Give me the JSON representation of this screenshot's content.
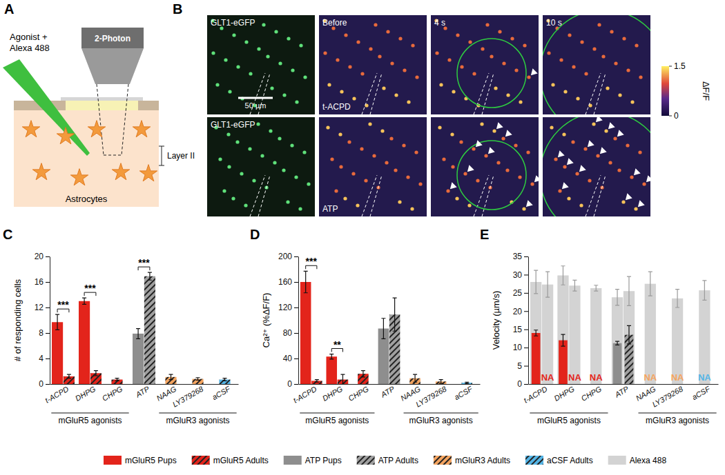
{
  "schematic": {
    "title": "A",
    "pipette_label": [
      "Agonist +",
      "Alexa 488"
    ],
    "objective_label": "2-Photon",
    "layer_label": "Layer II",
    "cell_label": "Astrocytes"
  },
  "images": {
    "title": "B",
    "columns": [
      "GLT1-eGFP",
      "Before",
      "4 s",
      "10 s"
    ],
    "rows": [
      "t-ACPD",
      "ATP"
    ],
    "scale_bar": "50 µm",
    "colorbar": {
      "label": "ΔF/F",
      "range": [
        0,
        1.5
      ],
      "ticks": [
        0,
        1.5
      ]
    }
  },
  "chart_data": [
    {
      "type": "bar",
      "title": "C",
      "y_label": "# of responding cells",
      "categories": [
        "t-ACPD",
        "DHPG",
        "CHPG",
        "ATP",
        "NAAG",
        "LY379268",
        "aCSF"
      ],
      "ylim": [
        0,
        20
      ],
      "yticks": [
        0,
        4,
        8,
        12,
        16,
        20
      ],
      "series": [
        {
          "type": "bar",
          "marker": "solid",
          "colors": [
            "#e3241b",
            "#e3241b",
            null,
            "#8e8e8e",
            null,
            null,
            null
          ],
          "values": [
            9.7,
            13,
            null,
            7.9,
            null,
            null,
            null
          ],
          "errors": [
            1.2,
            0.5,
            null,
            0.8,
            null,
            null,
            null
          ]
        },
        {
          "type": "bar",
          "marker": "hatched",
          "colors": [
            "#e3241b",
            "#e3241b",
            "#e3241b",
            "#a0a0a0",
            "#f4a460",
            "#f4a460",
            "#55b5e6"
          ],
          "values": [
            1.2,
            1.7,
            0.7,
            16.9,
            1.1,
            0.8,
            0.7
          ],
          "errors": [
            0.3,
            0.4,
            0.2,
            0.6,
            0.4,
            0.2,
            0.2
          ]
        }
      ],
      "annotations": [
        {
          "text": "***",
          "category": "t-ACPD"
        },
        {
          "text": "***",
          "category": "DHPG"
        },
        {
          "text": "***",
          "category": "ATP"
        }
      ],
      "category_groups": [
        {
          "label": "mGluR5 agonists",
          "from": "t-ACPD",
          "to": "CHPG"
        },
        {
          "label": "mGluR3 agonists",
          "from": "NAAG",
          "to": "aCSF"
        }
      ]
    },
    {
      "type": "bar",
      "title": "D",
      "y_label": "Ca²⁺ (%ΔF/F)",
      "categories": [
        "t-ACPD",
        "DHPG",
        "CHPG",
        "ATP",
        "NAAG",
        "LY379268",
        "aCSF"
      ],
      "ylim": [
        0,
        200
      ],
      "yticks": [
        0,
        40,
        80,
        120,
        160,
        200
      ],
      "series": [
        {
          "type": "bar",
          "marker": "solid",
          "colors": [
            "#e3241b",
            "#e3241b",
            null,
            "#8e8e8e",
            null,
            null,
            null
          ],
          "values": [
            160,
            43,
            null,
            87,
            null,
            null,
            null
          ],
          "errors": [
            17,
            4,
            null,
            16,
            null,
            null,
            null
          ]
        },
        {
          "type": "bar",
          "marker": "hatched",
          "colors": [
            "#e3241b",
            "#e3241b",
            "#e3241b",
            "#a0a0a0",
            "#f4a460",
            "#f4a460",
            "#55b5e6"
          ],
          "values": [
            5,
            7,
            16,
            109,
            9,
            4,
            2
          ],
          "errors": [
            2,
            8,
            5,
            26,
            6,
            3,
            1
          ]
        }
      ],
      "annotations": [
        {
          "text": "***",
          "category": "t-ACPD"
        },
        {
          "text": "**",
          "category": "DHPG"
        }
      ],
      "category_groups": [
        {
          "label": "mGluR5 agonists",
          "from": "t-ACPD",
          "to": "CHPG"
        },
        {
          "label": "mGluR3 agonists",
          "from": "NAAG",
          "to": "aCSF"
        }
      ]
    },
    {
      "type": "bar",
      "title": "E",
      "y_label": "Velocity (µm/s)",
      "categories": [
        "t-ACPD",
        "DHPG",
        "CHPG",
        "ATP",
        "NAAG",
        "LY379268",
        "aCSF"
      ],
      "ylim": [
        0,
        35
      ],
      "yticks": [
        0,
        5,
        10,
        15,
        20,
        25,
        30,
        35
      ],
      "series": [
        {
          "type": "backdrop",
          "marker": "solid",
          "color": "#d3d3d3",
          "values": [
            28,
            29.8,
            null,
            23.8,
            null,
            null,
            null
          ],
          "errors": [
            3.2,
            2.6,
            null,
            2.2,
            null,
            null,
            null
          ]
        },
        {
          "type": "backdrop",
          "marker": "solid",
          "color": "#d3d3d3",
          "values": [
            27.3,
            27,
            26.3,
            25.5,
            27.5,
            23.5,
            25.7
          ],
          "errors": [
            3.5,
            1.5,
            0.8,
            4,
            3.3,
            2.5,
            2.7
          ]
        },
        {
          "type": "bar",
          "marker": "solid",
          "colors": [
            "#e3241b",
            "#e3241b",
            null,
            "#8e8e8e",
            null,
            null,
            null
          ],
          "values": [
            14,
            12,
            null,
            11.2,
            null,
            null,
            null
          ],
          "errors": [
            0.8,
            1.6,
            null,
            0.5,
            null,
            null,
            null
          ]
        },
        {
          "type": "bar",
          "marker": "hatched",
          "colors": [
            "#e3241b",
            "#e3241b",
            "#e3241b",
            "#a0a0a0",
            "#f4a460",
            "#f4a460",
            "#55b5e6"
          ],
          "values": [
            null,
            null,
            null,
            13.5,
            null,
            null,
            null
          ],
          "errors": [
            null,
            null,
            null,
            2.5,
            null,
            null,
            null
          ],
          "value_labels": [
            "NA",
            "NA",
            "NA",
            null,
            "NA",
            "NA",
            "NA"
          ]
        }
      ],
      "category_groups": [
        {
          "label": "mGluR5 agonists",
          "from": "t-ACPD",
          "to": "CHPG"
        },
        {
          "label": "mGluR3 agonists",
          "from": "NAAG",
          "to": "aCSF"
        }
      ]
    }
  ],
  "legend": {
    "entries": [
      {
        "name": "mGluR5 Pups",
        "color": "#e3241b",
        "marker": "solid"
      },
      {
        "name": "mGluR5 Adults",
        "color": "#e3241b",
        "marker": "hatched"
      },
      {
        "name": "ATP Pups",
        "color": "#8e8e8e",
        "marker": "solid"
      },
      {
        "name": "ATP Adults",
        "color": "#a0a0a0",
        "marker": "hatched"
      },
      {
        "name": "mGluR3 Adults",
        "color": "#f4a460",
        "marker": "hatched"
      },
      {
        "name": "aCSF Adults",
        "color": "#55b5e6",
        "marker": "hatched"
      },
      {
        "name": "Alexa 488",
        "color": "#d3d3d3",
        "marker": "solid"
      }
    ]
  }
}
